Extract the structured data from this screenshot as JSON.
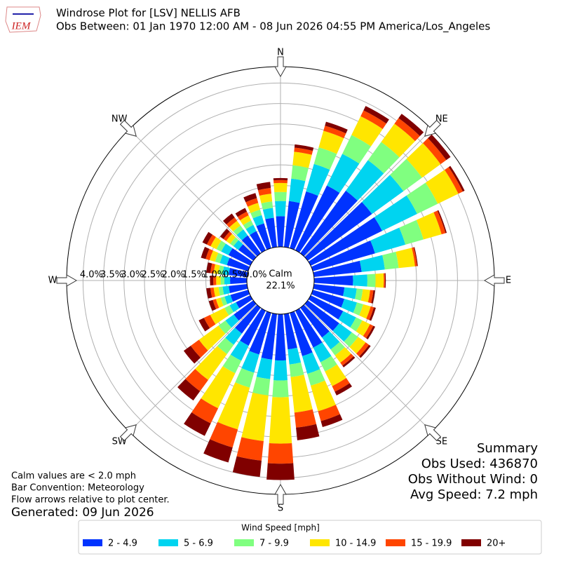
{
  "logo": {
    "text": "IEM"
  },
  "chart_data": {
    "type": "windrose",
    "title": "Windrose Plot for [LSV] NELLIS AFB",
    "subtitle": "Obs Between: 01 Jan 1970 12:00 AM - 08 Jun 2026 04:55 PM America/Los_Angeles",
    "x": [
      0,
      10,
      20,
      30,
      40,
      50,
      60,
      70,
      80,
      90,
      100,
      110,
      120,
      130,
      140,
      150,
      160,
      170,
      180,
      190,
      200,
      210,
      220,
      230,
      240,
      250,
      260,
      270,
      280,
      290,
      300,
      310,
      320,
      330,
      340,
      350
    ],
    "xticks": [
      {
        "value": 0,
        "label": "N"
      },
      {
        "value": 45,
        "label": "NE"
      },
      {
        "value": 90,
        "label": "E"
      },
      {
        "value": 135,
        "label": "SE"
      },
      {
        "value": 180,
        "label": "S"
      },
      {
        "value": 225,
        "label": "SW"
      },
      {
        "value": 270,
        "label": "W"
      },
      {
        "value": 315,
        "label": "NW"
      }
    ],
    "ylim": [
      0,
      4.4
    ],
    "yticks": [
      {
        "value": 0,
        "label": "0.0%"
      },
      {
        "value": 0.5,
        "label": "0.5%"
      },
      {
        "value": 1,
        "label": "1.0%"
      },
      {
        "value": 1.5,
        "label": "1.5%"
      },
      {
        "value": 2,
        "label": "2.0%"
      },
      {
        "value": 2.5,
        "label": "2.5%"
      },
      {
        "value": 3,
        "label": "3.0%"
      },
      {
        "value": 3.5,
        "label": "3.5%"
      },
      {
        "value": 4,
        "label": "4.0%"
      }
    ],
    "grid": true,
    "calm_label": "Calm",
    "calm_value": "22.1%",
    "legend_title": "Wind Speed [mph]",
    "series": [
      {
        "name": "2 - 4.9",
        "color": "#0033ff",
        "values": [
          0.75,
          1.13,
          1.44,
          1.76,
          1.89,
          1.94,
          1.94,
          1.58,
          1.17,
          0.95,
          0.75,
          0.8,
          0.88,
          0.95,
          0.9,
          1.0,
          1.1,
          0.87,
          1.13,
          1.12,
          1.06,
          0.95,
          0.78,
          0.59,
          0.39,
          0.45,
          0.45,
          0.41,
          0.45,
          0.54,
          0.59,
          0.45,
          0.54,
          0.52,
          0.63,
          0.72
        ]
      },
      {
        "name": "5 - 6.9",
        "color": "#00d4f0",
        "values": [
          0.37,
          0.55,
          0.7,
          0.86,
          0.92,
          0.95,
          0.95,
          0.77,
          0.57,
          0.35,
          0.3,
          0.32,
          0.35,
          0.38,
          0.36,
          0.4,
          0.45,
          0.37,
          0.49,
          0.48,
          0.46,
          0.41,
          0.34,
          0.25,
          0.17,
          0.15,
          0.15,
          0.14,
          0.15,
          0.18,
          0.2,
          0.15,
          0.18,
          0.17,
          0.21,
          0.24
        ]
      },
      {
        "name": "7 - 9.9",
        "color": "#80ff80",
        "values": [
          0.22,
          0.33,
          0.42,
          0.51,
          0.55,
          0.56,
          0.56,
          0.46,
          0.34,
          0.2,
          0.15,
          0.16,
          0.17,
          0.19,
          0.18,
          0.25,
          0.3,
          0.31,
          0.41,
          0.4,
          0.38,
          0.34,
          0.28,
          0.21,
          0.14,
          0.1,
          0.1,
          0.09,
          0.1,
          0.12,
          0.13,
          0.1,
          0.12,
          0.12,
          0.14,
          0.16
        ]
      },
      {
        "name": "10 - 14.9",
        "color": "#ffe600",
        "values": [
          0.22,
          0.33,
          0.42,
          0.51,
          0.55,
          0.56,
          0.56,
          0.46,
          0.4,
          0.2,
          0.18,
          0.19,
          0.21,
          0.23,
          0.22,
          0.4,
          0.65,
          0.87,
          1.13,
          1.12,
          1.06,
          0.95,
          0.78,
          0.59,
          0.39,
          0.12,
          0.12,
          0.11,
          0.12,
          0.14,
          0.16,
          0.12,
          0.14,
          0.14,
          0.17,
          0.19
        ]
      },
      {
        "name": "15 - 19.9",
        "color": "#ff4500",
        "values": [
          0.07,
          0.1,
          0.13,
          0.16,
          0.17,
          0.17,
          0.12,
          0.1,
          0.05,
          0.03,
          0.08,
          0.08,
          0.09,
          0.1,
          0.09,
          0.15,
          0.25,
          0.37,
          0.49,
          0.48,
          0.46,
          0.41,
          0.34,
          0.25,
          0.17,
          0.08,
          0.08,
          0.07,
          0.08,
          0.1,
          0.1,
          0.08,
          0.1,
          0.1,
          0.12,
          0.14
        ]
      },
      {
        "name": "20+",
        "color": "#800000",
        "values": [
          0.05,
          0.08,
          0.1,
          0.12,
          0.13,
          0.13,
          0.05,
          0.03,
          0.02,
          0.02,
          0.04,
          0.05,
          0.05,
          0.05,
          0.05,
          0.1,
          0.15,
          0.31,
          0.4,
          0.4,
          0.38,
          0.34,
          0.28,
          0.21,
          0.14,
          0.1,
          0.1,
          0.08,
          0.1,
          0.12,
          0.12,
          0.1,
          0.12,
          0.1,
          0.13,
          0.15
        ]
      }
    ]
  },
  "notes": [
    "Calm values are < 2.0 mph",
    "Bar Convention: Meteorology",
    "Flow arrows relative to plot center."
  ],
  "generated": "Generated: 09 Jun 2026",
  "summary": [
    "Summary",
    "Obs Used: 436870",
    "Obs Without Wind: 0",
    "Avg Speed: 7.2 mph"
  ]
}
